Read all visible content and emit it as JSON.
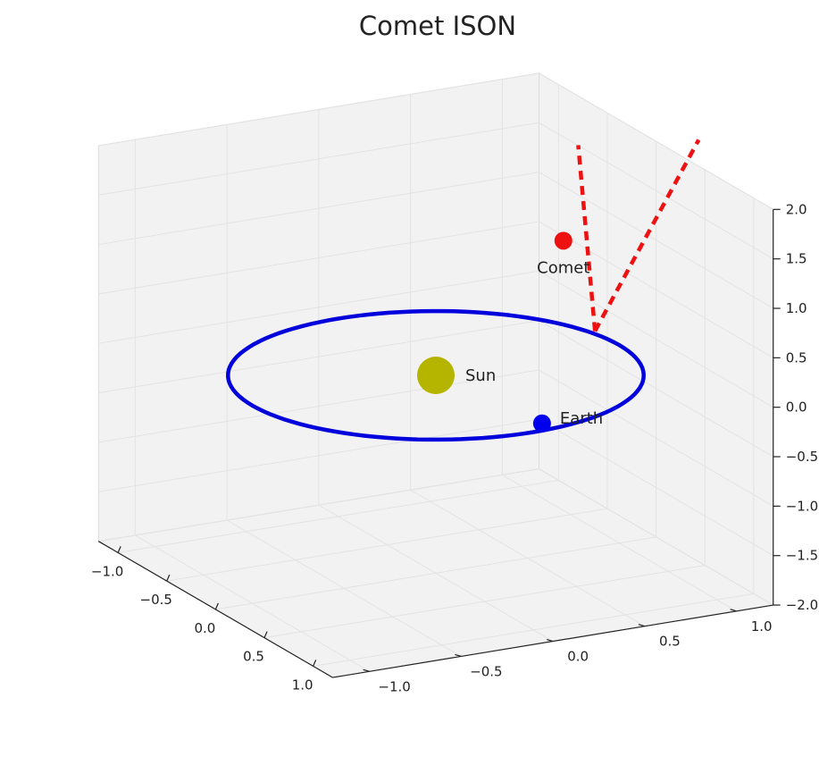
{
  "chart_data": {
    "type": "line",
    "projection": "3d",
    "title": "Comet ISON",
    "grid": true,
    "axes": {
      "x": {
        "ticks": [
          "−1.0",
          "−0.5",
          "0.0",
          "0.5",
          "1.0"
        ],
        "lim": [
          -1.2,
          1.2
        ]
      },
      "y": {
        "ticks": [
          "−1.0",
          "−0.5",
          "0.0",
          "0.5",
          "1.0"
        ],
        "lim": [
          -1.2,
          1.2
        ]
      },
      "z": {
        "ticks": [
          "−2.0",
          "−1.5",
          "−1.0",
          "−0.5",
          "0.0",
          "0.5",
          "1.0",
          "1.5",
          "2.0"
        ],
        "lim": [
          -2.0,
          2.0
        ]
      }
    },
    "series": [
      {
        "role": "earth-orbit",
        "color": "#0000dd",
        "style": "solid",
        "shape": "circle",
        "center": [
          0,
          0,
          0
        ],
        "radius": 1.0
      },
      {
        "role": "comet-path",
        "color": "#ee1111",
        "style": "dashed",
        "x": [
          -0.25,
          -1.35
        ],
        "y": [
          1.0,
          2.15
        ],
        "z": [
          0.0,
          0.95
        ]
      },
      {
        "role": "comet-path",
        "color": "#ee1111",
        "style": "dashed",
        "x": [
          -0.25,
          -1.55
        ],
        "y": [
          1.0,
          1.6
        ],
        "z": [
          0.0,
          0.95
        ]
      }
    ],
    "points": [
      {
        "label": "Sun",
        "color": "#b5b500",
        "x": 0.0,
        "y": 0.0,
        "z": 0.0,
        "size": "large"
      },
      {
        "label": "Earth",
        "color": "#0000ee",
        "x": 0.9,
        "y": 0.1,
        "z": 0.0,
        "size": "small"
      },
      {
        "label": "Comet",
        "color": "#ee1111",
        "x": -0.95,
        "y": 1.2,
        "z": 0.45,
        "size": "small"
      }
    ],
    "colors": {
      "pane": "#f2f2f2",
      "grid": "#e3e3e3",
      "pane_edge": "#dcdcdc",
      "axis": "#222222"
    }
  }
}
